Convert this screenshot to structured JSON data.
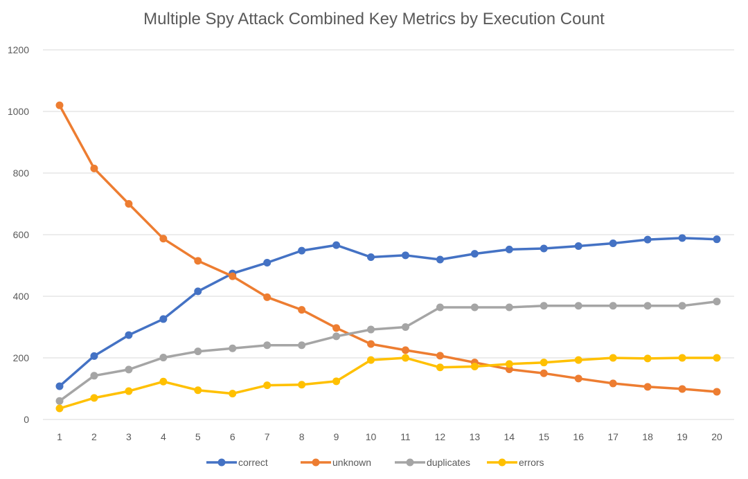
{
  "chart_data": {
    "type": "line",
    "title": "Multiple Spy Attack Combined Key Metrics by Execution Count",
    "xlabel": "",
    "ylabel": "",
    "categories": [
      "1",
      "2",
      "3",
      "4",
      "5",
      "6",
      "7",
      "8",
      "9",
      "10",
      "11",
      "12",
      "13",
      "14",
      "15",
      "16",
      "17",
      "18",
      "19",
      "20"
    ],
    "ylim": [
      0,
      1200
    ],
    "yticks": [
      0,
      200,
      400,
      600,
      800,
      1000,
      1200
    ],
    "grid": true,
    "legend_position": "bottom",
    "series": [
      {
        "name": "correct",
        "color": "#4472C4",
        "values": [
          108,
          206,
          274,
          326,
          416,
          474,
          509,
          548,
          566,
          527,
          533,
          519,
          538,
          552,
          555,
          563,
          572,
          584,
          589,
          585
        ]
      },
      {
        "name": "unknown",
        "color": "#ED7D31",
        "values": [
          1020,
          815,
          700,
          587,
          515,
          465,
          397,
          356,
          297,
          245,
          225,
          207,
          185,
          163,
          150,
          133,
          117,
          106,
          99,
          90
        ]
      },
      {
        "name": "duplicates",
        "color": "#A5A5A5",
        "values": [
          60,
          142,
          162,
          201,
          221,
          231,
          241,
          241,
          270,
          292,
          300,
          364,
          364,
          364,
          369,
          369,
          369,
          369,
          369,
          383
        ]
      },
      {
        "name": "errors",
        "color": "#FFC000",
        "values": [
          36,
          70,
          92,
          123,
          95,
          84,
          111,
          113,
          124,
          193,
          200,
          169,
          172,
          180,
          185,
          193,
          200,
          198,
          200,
          200
        ]
      }
    ]
  }
}
